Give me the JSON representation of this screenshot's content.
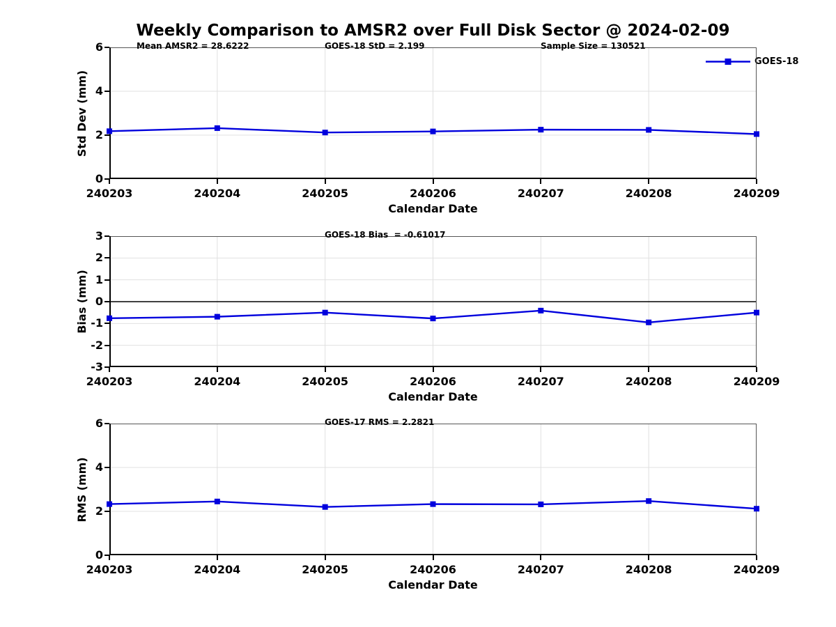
{
  "figure": {
    "title": "Weekly Comparison to AMSR2 over Full Disk Sector @ 2024-02-09",
    "legend": {
      "label": "GOES-18"
    },
    "colors": {
      "line": "#0000dd",
      "marker": "#0000dd",
      "grid": "#e0e0e0",
      "axis": "#000000",
      "box": "#555555",
      "zero_line": "#000000",
      "text": "#000000"
    }
  },
  "chart_data": [
    {
      "type": "line",
      "categories": [
        "240203",
        "240204",
        "240205",
        "240206",
        "240207",
        "240208",
        "240209"
      ],
      "series": [
        {
          "name": "GOES-18",
          "values": [
            2.18,
            2.32,
            2.12,
            2.17,
            2.25,
            2.24,
            2.05
          ]
        }
      ],
      "title": "",
      "xlabel": "Calendar Date",
      "ylabel": "Std Dev (mm)",
      "ylim": [
        0,
        6
      ],
      "yticks": [
        0,
        2,
        4,
        6
      ],
      "grid": true,
      "legend_position": "top-right",
      "annotations": [
        {
          "text": "Mean AMSR2 = 28.6222",
          "x": 39
        },
        {
          "text": "GOES-18 StD = 2.199",
          "x": 309
        },
        {
          "text": "Sample Size = 130521",
          "x": 619
        }
      ]
    },
    {
      "type": "line",
      "categories": [
        "240203",
        "240204",
        "240205",
        "240206",
        "240207",
        "240208",
        "240209"
      ],
      "series": [
        {
          "name": "GOES-18",
          "values": [
            -0.76,
            -0.69,
            -0.5,
            -0.77,
            -0.41,
            -0.95,
            -0.5
          ]
        }
      ],
      "title": "",
      "xlabel": "Calendar Date",
      "ylabel": "Bias (mm)",
      "ylim": [
        -3,
        3
      ],
      "yticks": [
        -3,
        -2,
        -1,
        0,
        1,
        2,
        3
      ],
      "grid": true,
      "zero_line": true,
      "annotations": [
        {
          "text": "GOES-18 Bias  = -0.61017",
          "x": 309
        }
      ]
    },
    {
      "type": "line",
      "categories": [
        "240203",
        "240204",
        "240205",
        "240206",
        "240207",
        "240208",
        "240209"
      ],
      "series": [
        {
          "name": "GOES-18",
          "values": [
            2.33,
            2.45,
            2.2,
            2.33,
            2.32,
            2.47,
            2.12
          ]
        }
      ],
      "title": "",
      "xlabel": "Calendar Date",
      "ylabel": "RMS (mm)",
      "ylim": [
        0,
        6
      ],
      "yticks": [
        0,
        2,
        4,
        6
      ],
      "grid": true,
      "annotations": [
        {
          "text": "GOES-17 RMS = 2.2821",
          "x": 309
        }
      ]
    }
  ]
}
